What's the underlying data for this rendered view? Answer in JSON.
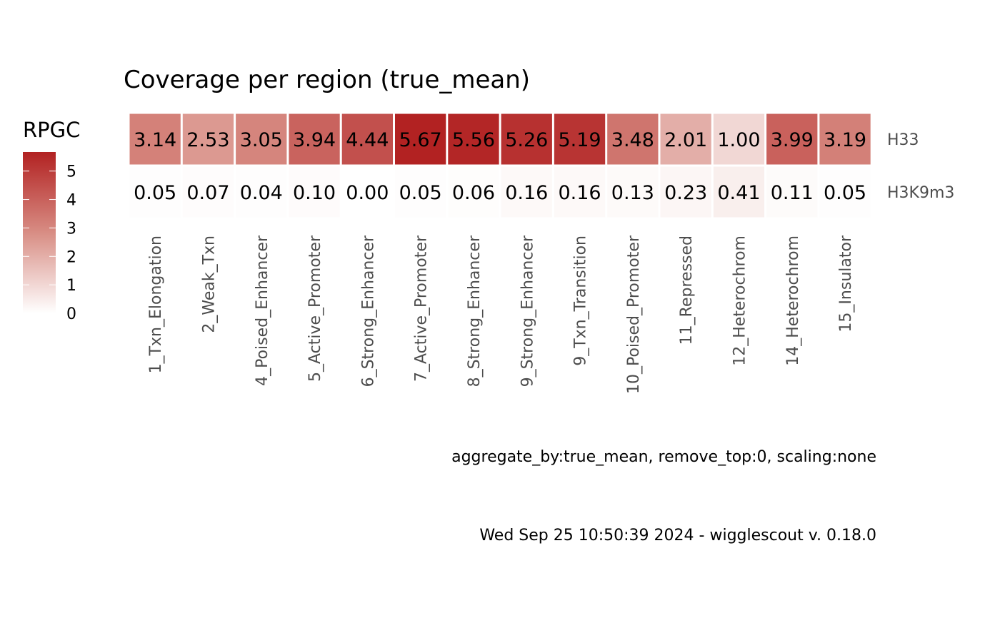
{
  "colors": {
    "low": "#ffffff",
    "mid": "#d88d84",
    "high": "#b22222",
    "tick_text": "#4d4d4d"
  },
  "chart_data": {
    "type": "heatmap",
    "title": "Coverage per region (true_mean)",
    "xlabel": "",
    "ylabel": "",
    "categories": [
      "1_Txn_Elongation",
      "2_Weak_Txn",
      "4_Poised_Enhancer",
      "5_Active_Promoter",
      "6_Strong_Enhancer",
      "7_Active_Promoter",
      "8_Strong_Enhancer",
      "9_Strong_Enhancer",
      "9_Txn_Transition",
      "10_Poised_Promoter",
      "11_Repressed",
      "12_Heterochrom",
      "14_Heterochrom",
      "15_Insulator"
    ],
    "rows": [
      "H33",
      "H3K9m3"
    ],
    "values": [
      [
        3.14,
        2.53,
        3.05,
        3.94,
        4.44,
        5.67,
        5.56,
        5.26,
        5.19,
        3.48,
        2.01,
        1.0,
        3.99,
        3.19
      ],
      [
        0.05,
        0.07,
        0.04,
        0.1,
        0.0,
        0.05,
        0.06,
        0.16,
        0.16,
        0.13,
        0.23,
        0.41,
        0.11,
        0.05
      ]
    ],
    "value_labels": [
      [
        "3.14",
        "2.53",
        "3.05",
        "3.94",
        "4.44",
        "5.67",
        "5.56",
        "5.26",
        "5.19",
        "3.48",
        "2.01",
        "1.00",
        "3.99",
        "3.19"
      ],
      [
        "0.05",
        "0.07",
        "0.04",
        "0.10",
        "0.00",
        "0.05",
        "0.06",
        "0.16",
        "0.16",
        "0.13",
        "0.23",
        "0.41",
        "0.11",
        "0.05"
      ]
    ],
    "legend": {
      "title": "RPGC",
      "placement": "left",
      "range": [
        0,
        5.67
      ],
      "ticks": [
        0,
        1,
        2,
        3,
        4,
        5
      ],
      "tick_labels": [
        "0",
        "1",
        "2",
        "3",
        "4",
        "5"
      ]
    },
    "grid": false,
    "captions": [
      "aggregate_by:true_mean, remove_top:0, scaling:none",
      "Wed Sep 25 10:50:39 2024 - wigglescout v. 0.18.0"
    ]
  }
}
